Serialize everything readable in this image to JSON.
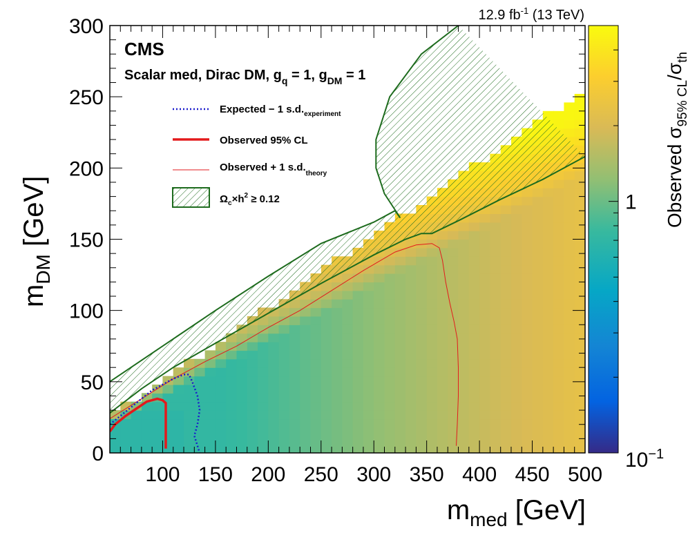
{
  "chart_data": {
    "type": "heatmap",
    "experiment_label": "CMS",
    "model_label": "Scalar med, Dirac DM, g",
    "model_label_parts": {
      "q_sub": "q",
      "eq1": " = 1, g",
      "dm_sub": "DM",
      "eq2": " = 1"
    },
    "lumi_label": {
      "value": "12.9 fb",
      "sup": "-1",
      "energy": " (13 TeV)"
    },
    "xlabel": {
      "main": "m",
      "sub": "med",
      "unit": " [GeV]"
    },
    "ylabel": {
      "main": "m",
      "sub": "DM",
      "unit": " [GeV]"
    },
    "zlabel": {
      "prefix": "Observed  ",
      "sigma1": "σ",
      "sub1": "95% CL",
      "slash": "/",
      "sigma2": "σ",
      "sub2": "th"
    },
    "xlim": [
      50,
      500
    ],
    "ylim": [
      0,
      300
    ],
    "zlim": [
      0.1,
      5
    ],
    "zscale": "log",
    "x_ticks": [
      100,
      150,
      200,
      250,
      300,
      350,
      400,
      450,
      500
    ],
    "y_ticks": [
      0,
      50,
      100,
      150,
      200,
      250,
      300
    ],
    "z_ticks": [
      {
        "value": 1,
        "label": "1"
      },
      {
        "value": 0.1,
        "label": "10",
        "sup": "−1"
      }
    ],
    "legend": {
      "placement": "top-left",
      "entries": [
        {
          "label": "Expected  − 1 s.d.",
          "sub": "experiment",
          "style": "dotted",
          "color": "#1a1acc"
        },
        {
          "label": "Observed 95% CL",
          "sub": "",
          "style": "solid-thick",
          "color": "#e31a1c"
        },
        {
          "label": "Observed  + 1 s.d.",
          "sub": "theory",
          "style": "solid-thin",
          "color": "#e31a1c"
        },
        {
          "label": "Ω",
          "label_sub": "c",
          "label_rest": "×h",
          "label_sup": "2",
          "label_end": "  ≥ 0.12",
          "style": "hatched",
          "color": "#1d6b1d"
        }
      ]
    },
    "contours": {
      "expected_minus_1sd": [
        [
          50,
          20
        ],
        [
          60,
          26
        ],
        [
          70,
          32
        ],
        [
          80,
          38
        ],
        [
          90,
          44
        ],
        [
          100,
          48
        ],
        [
          110,
          52
        ],
        [
          120,
          55
        ],
        [
          125,
          55
        ],
        [
          128,
          50
        ],
        [
          133,
          40
        ],
        [
          135,
          30
        ],
        [
          133,
          20
        ],
        [
          130,
          12
        ],
        [
          133,
          5
        ],
        [
          135,
          0
        ]
      ],
      "observed_95cl": [
        [
          50,
          15
        ],
        [
          55,
          20
        ],
        [
          65,
          26
        ],
        [
          75,
          31
        ],
        [
          85,
          36
        ],
        [
          95,
          38
        ],
        [
          100,
          37
        ],
        [
          103,
          35
        ],
        [
          103,
          25
        ],
        [
          103,
          15
        ],
        [
          103,
          3
        ]
      ],
      "observed_plus_1sd_theory": [
        [
          50,
          24
        ],
        [
          80,
          38
        ],
        [
          110,
          52
        ],
        [
          140,
          64
        ],
        [
          170,
          75
        ],
        [
          200,
          88
        ],
        [
          230,
          100
        ],
        [
          260,
          114
        ],
        [
          290,
          128
        ],
        [
          320,
          141
        ],
        [
          340,
          146
        ],
        [
          355,
          147
        ],
        [
          362,
          144
        ],
        [
          365,
          135
        ],
        [
          368,
          120
        ],
        [
          372,
          105
        ],
        [
          376,
          92
        ],
        [
          379,
          80
        ],
        [
          380,
          60
        ],
        [
          380,
          40
        ],
        [
          379,
          20
        ],
        [
          378,
          5
        ]
      ],
      "relic_lower_line": [
        [
          50,
          28
        ],
        [
          80,
          45
        ],
        [
          110,
          60
        ],
        [
          150,
          77
        ],
        [
          200,
          98
        ],
        [
          250,
          119
        ],
        [
          300,
          139
        ],
        [
          330,
          150
        ],
        [
          345,
          154
        ],
        [
          355,
          154
        ],
        [
          380,
          163
        ],
        [
          420,
          178
        ],
        [
          460,
          192
        ],
        [
          500,
          208
        ]
      ],
      "relic_upper_line": [
        [
          50,
          50
        ],
        [
          100,
          75
        ],
        [
          150,
          100
        ],
        [
          200,
          124
        ],
        [
          250,
          147
        ],
        [
          300,
          162
        ],
        [
          320,
          170
        ],
        [
          325,
          165
        ],
        [
          310,
          182
        ],
        [
          302,
          200
        ],
        [
          302,
          220
        ],
        [
          315,
          250
        ],
        [
          345,
          280
        ],
        [
          380,
          300
        ]
      ]
    },
    "heatmap_regions": [
      {
        "zone": "low_mdm_green",
        "value": 0.75
      },
      {
        "zone": "mid_yellowgreen",
        "value": 1.1
      },
      {
        "zone": "high_mmed_orange",
        "value": 2.0
      },
      {
        "zone": "near_threshold_yellow",
        "value": 3.5
      }
    ]
  },
  "colors": {
    "relic_line": "#1d6b1d",
    "observed": "#e31a1c",
    "expected": "#1a1acc",
    "palette": [
      "#352a87",
      "#0363e1",
      "#1485d4",
      "#06a7c6",
      "#38b99e",
      "#92bf73",
      "#d9ba56",
      "#fcce2e",
      "#f9fb0e"
    ]
  }
}
